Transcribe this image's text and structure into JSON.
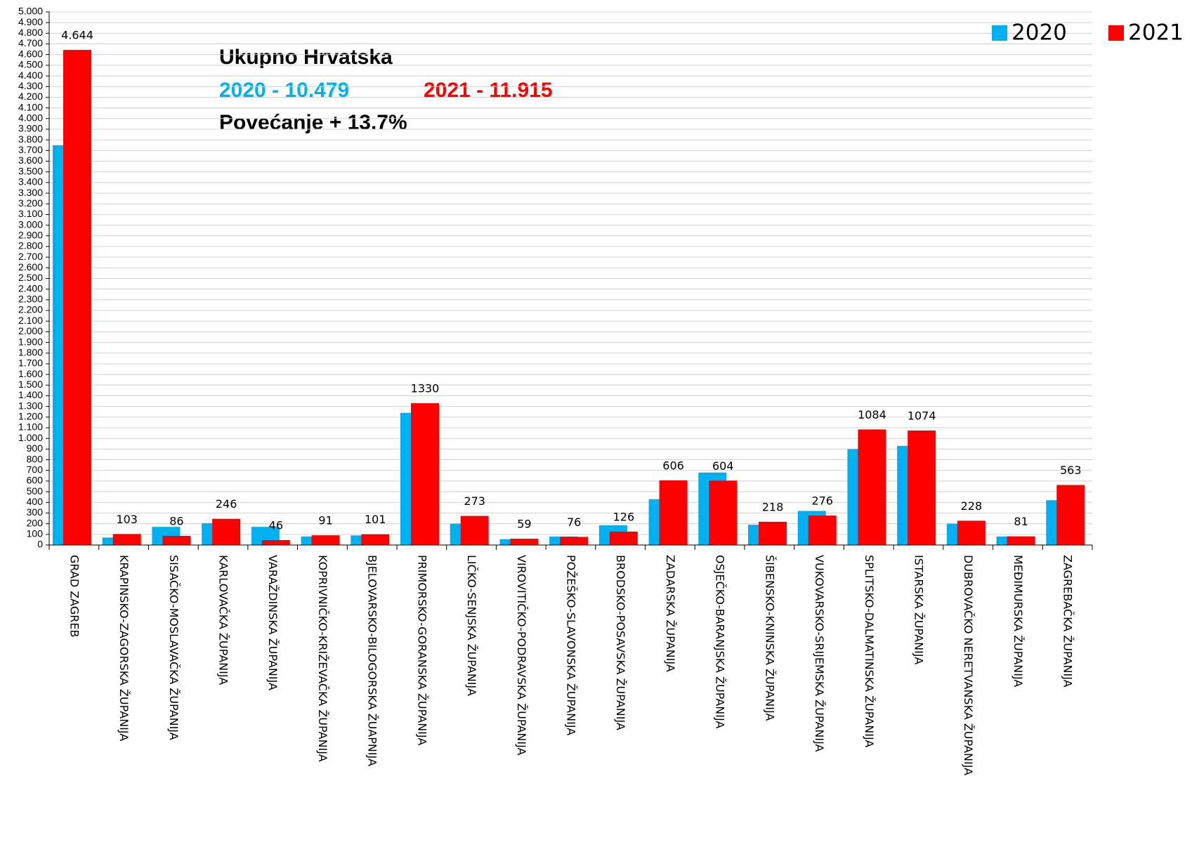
{
  "chart_data": {
    "type": "bar",
    "annotations": [
      "Ukupno Hrvatska",
      "2020 - 10.479",
      "2021 - 11.915",
      "Povećanje + 13.7%"
    ],
    "categories": [
      "GRAD ZAGREB",
      "KRAPINSKO-ZAGORSKA ŽUPANIJA",
      "SISAČKO-MOSLAVAČKA ŽUPANIJA",
      "KARLOVAČKA ŽUPANIJA",
      "VARAŽDINSKA ŽUPANIJA",
      "KOPRIVNIČKO-KRIŽEVAČKA ŽUPANIJA",
      "BJELOVARSKO-BILOGORSKA ŽUAPNIJA",
      "PRIMORSKO-GORANSKA ŽUPANIJA",
      "LIČKO-SENJSKA ŽUPANIJA",
      "VIROVITIČKO-PODRAVSKA ŽUPANIJA",
      "POŽEŠKO-SLAVONSKA ŽUPANIJA",
      "BRODSKO-POSAVSKA ŽUPANIJA",
      "ZADARSKA ŽUPANIJA",
      "OSJEČKO-BARANJSKA ŽUPANIJA",
      "ŠIBENSKO-KNINSKA ŽUPANIJA",
      "VUKOVARSKO-SRIJEMSKA ŽUPANIJA",
      "SPLITSKO-DALMATINSKA ŽUPANIJA",
      "ISTARSKA ŽUPANIJA",
      "DUBROVAČKO NERETVANSKA ŽUPANIJA",
      "MEĐIMURSKA ŽUPANIJA",
      "ZAGREBAČKA ŽUPANIJA"
    ],
    "series": [
      {
        "name": "2020",
        "color": "#00b0f0",
        "values": [
          3750,
          70,
          170,
          205,
          170,
          80,
          90,
          1240,
          200,
          55,
          80,
          185,
          430,
          680,
          190,
          320,
          900,
          930,
          200,
          80,
          420
        ]
      },
      {
        "name": "2021",
        "color": "#ff0000",
        "values": [
          4644,
          103,
          86,
          246,
          46,
          91,
          101,
          1330,
          273,
          59,
          76,
          126,
          606,
          604,
          218,
          276,
          1084,
          1074,
          228,
          81,
          563
        ],
        "value_labels": [
          "4.644",
          "103",
          "86",
          "246",
          "46",
          "91",
          "101",
          "1330",
          "273",
          "59",
          "76",
          "126",
          "606",
          "604",
          "218",
          "276",
          "1084",
          "1074",
          "228",
          "81",
          "563"
        ]
      }
    ],
    "ylim": [
      0,
      5000
    ],
    "yticks": [
      0,
      100,
      200,
      300,
      400,
      500,
      600,
      700,
      800,
      900,
      {
        "value": 1000,
        "label": "1.000"
      },
      {
        "value": 1100,
        "label": "1.100"
      },
      {
        "value": 1200,
        "label": "1.200"
      },
      {
        "value": 1300,
        "label": "1.300"
      },
      {
        "value": 1400,
        "label": "1.400"
      },
      {
        "value": 1500,
        "label": "1.500"
      },
      {
        "value": 1600,
        "label": "1.600"
      },
      {
        "value": 1700,
        "label": "1.700"
      },
      {
        "value": 1800,
        "label": "1.800"
      },
      {
        "value": 1900,
        "label": "1.900"
      },
      {
        "value": 2000,
        "label": "2.000"
      },
      {
        "value": 2100,
        "label": "2.100"
      },
      {
        "value": 2200,
        "label": "2.200"
      },
      {
        "value": 2300,
        "label": "2.300"
      },
      {
        "value": 2400,
        "label": "2.400"
      },
      {
        "value": 2500,
        "label": "2.500"
      },
      {
        "value": 2600,
        "label": "2.600"
      },
      {
        "value": 2700,
        "label": "2.700"
      },
      {
        "value": 2800,
        "label": "2.800"
      },
      {
        "value": 2900,
        "label": "2.900"
      },
      {
        "value": 3000,
        "label": "3.000"
      },
      {
        "value": 3100,
        "label": "3.100"
      },
      {
        "value": 3200,
        "label": "3.200"
      },
      {
        "value": 3300,
        "label": "3.300"
      },
      {
        "value": 3400,
        "label": "3.400"
      },
      {
        "value": 3500,
        "label": "3.500"
      },
      {
        "value": 3600,
        "label": "3.600"
      },
      {
        "value": 3700,
        "label": "3.700"
      },
      {
        "value": 3800,
        "label": "3.800"
      },
      {
        "value": 3900,
        "label": "3.900"
      },
      {
        "value": 4000,
        "label": "4.000"
      },
      {
        "value": 4100,
        "label": "4.100"
      },
      {
        "value": 4200,
        "label": "4.200"
      },
      {
        "value": 4300,
        "label": "4.300"
      },
      {
        "value": 4400,
        "label": "4.400"
      },
      {
        "value": 4500,
        "label": "4.500"
      },
      {
        "value": 4600,
        "label": "4.600"
      },
      {
        "value": 4700,
        "label": "4.700"
      },
      {
        "value": 4800,
        "label": "4.800"
      },
      {
        "value": 4900,
        "label": "4.900"
      },
      {
        "value": 5000,
        "label": "5.000"
      }
    ],
    "grid": true,
    "legend": "top-right"
  }
}
